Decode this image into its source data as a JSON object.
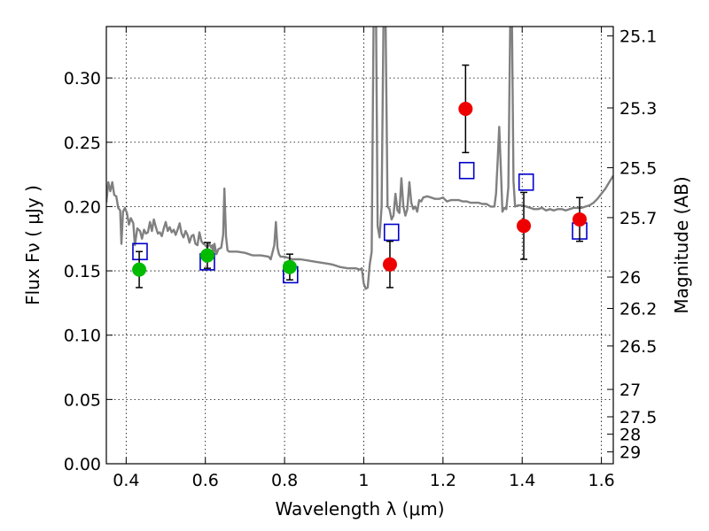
{
  "chart_data": {
    "type": "scatter",
    "xlabel": "Wavelength  λ (μm)",
    "ylabel": "Flux  Fν  ( μJy )",
    "ylabel_right": "Magnitude (AB)",
    "xlim": [
      0.35,
      1.63
    ],
    "ylim": [
      0.0,
      0.34
    ],
    "grid": true,
    "x_ticks": [
      0.4,
      0.6,
      0.8,
      1.0,
      1.2,
      1.4,
      1.6
    ],
    "x_tick_labels": [
      "0.4",
      "0.6",
      "0.8",
      "1",
      "1.2",
      "1.4",
      "1.6"
    ],
    "y_ticks": [
      0.0,
      0.05,
      0.1,
      0.15,
      0.2,
      0.25,
      0.3
    ],
    "y_tick_labels": [
      "0.00",
      "0.05",
      "0.10",
      "0.15",
      "0.20",
      "0.25",
      "0.30"
    ],
    "mag_ticks": [
      {
        "label": "25.1",
        "flux": 0.3327
      },
      {
        "label": "25.3",
        "flux": 0.2767
      },
      {
        "label": "25.5",
        "flux": 0.2302
      },
      {
        "label": "25.7",
        "flux": 0.1914
      },
      {
        "label": "26",
        "flux": 0.1452
      },
      {
        "label": "26.2",
        "flux": 0.1208
      },
      {
        "label": "26.5",
        "flux": 0.0916
      },
      {
        "label": "27",
        "flux": 0.0578
      },
      {
        "label": "27.5",
        "flux": 0.0365
      },
      {
        "label": "28",
        "flux": 0.023
      },
      {
        "label": "29",
        "flux": 0.0092
      }
    ],
    "series": [
      {
        "kind": "spectrum",
        "color": "#808080",
        "points": [
          [
            0.35,
            0.203
          ],
          [
            0.355,
            0.219
          ],
          [
            0.36,
            0.212
          ],
          [
            0.365,
            0.219
          ],
          [
            0.37,
            0.209
          ],
          [
            0.375,
            0.208
          ],
          [
            0.38,
            0.199
          ],
          [
            0.385,
            0.197
          ],
          [
            0.388,
            0.171
          ],
          [
            0.392,
            0.196
          ],
          [
            0.397,
            0.199
          ],
          [
            0.402,
            0.195
          ],
          [
            0.407,
            0.186
          ],
          [
            0.412,
            0.191
          ],
          [
            0.418,
            0.187
          ],
          [
            0.422,
            0.17
          ],
          [
            0.428,
            0.183
          ],
          [
            0.435,
            0.181
          ],
          [
            0.44,
            0.175
          ],
          [
            0.445,
            0.182
          ],
          [
            0.45,
            0.179
          ],
          [
            0.455,
            0.18
          ],
          [
            0.46,
            0.188
          ],
          [
            0.465,
            0.181
          ],
          [
            0.47,
            0.19
          ],
          [
            0.475,
            0.184
          ],
          [
            0.48,
            0.179
          ],
          [
            0.485,
            0.18
          ],
          [
            0.49,
            0.177
          ],
          [
            0.495,
            0.183
          ],
          [
            0.5,
            0.188
          ],
          [
            0.505,
            0.181
          ],
          [
            0.51,
            0.184
          ],
          [
            0.515,
            0.18
          ],
          [
            0.52,
            0.182
          ],
          [
            0.525,
            0.178
          ],
          [
            0.53,
            0.182
          ],
          [
            0.535,
            0.187
          ],
          [
            0.54,
            0.179
          ],
          [
            0.545,
            0.176
          ],
          [
            0.55,
            0.181
          ],
          [
            0.555,
            0.178
          ],
          [
            0.56,
            0.172
          ],
          [
            0.565,
            0.177
          ],
          [
            0.57,
            0.178
          ],
          [
            0.575,
            0.171
          ],
          [
            0.58,
            0.17
          ],
          [
            0.585,
            0.18
          ],
          [
            0.59,
            0.173
          ],
          [
            0.595,
            0.171
          ],
          [
            0.6,
            0.17
          ],
          [
            0.605,
            0.168
          ],
          [
            0.61,
            0.171
          ],
          [
            0.615,
            0.168
          ],
          [
            0.618,
            0.17
          ],
          [
            0.62,
            0.16
          ],
          [
            0.623,
            0.171
          ],
          [
            0.628,
            0.163
          ],
          [
            0.633,
            0.167
          ],
          [
            0.64,
            0.168
          ],
          [
            0.645,
            0.178
          ],
          [
            0.648,
            0.214
          ],
          [
            0.652,
            0.177
          ],
          [
            0.656,
            0.166
          ],
          [
            0.66,
            0.165
          ],
          [
            0.68,
            0.165
          ],
          [
            0.7,
            0.164
          ],
          [
            0.72,
            0.162
          ],
          [
            0.74,
            0.162
          ],
          [
            0.76,
            0.161
          ],
          [
            0.765,
            0.159
          ],
          [
            0.77,
            0.165
          ],
          [
            0.774,
            0.17
          ],
          [
            0.778,
            0.188
          ],
          [
            0.782,
            0.168
          ],
          [
            0.786,
            0.163
          ],
          [
            0.79,
            0.161
          ],
          [
            0.8,
            0.161
          ],
          [
            0.81,
            0.16
          ],
          [
            0.82,
            0.159
          ],
          [
            0.84,
            0.159
          ],
          [
            0.86,
            0.158
          ],
          [
            0.88,
            0.157
          ],
          [
            0.9,
            0.156
          ],
          [
            0.92,
            0.155
          ],
          [
            0.94,
            0.153
          ],
          [
            0.96,
            0.152
          ],
          [
            0.98,
            0.152
          ],
          [
            0.99,
            0.151
          ],
          [
            0.995,
            0.152
          ],
          [
            1.0,
            0.14
          ],
          [
            1.005,
            0.136
          ],
          [
            1.01,
            0.137
          ],
          [
            1.015,
            0.155
          ],
          [
            1.02,
            0.165
          ],
          [
            1.025,
            0.35
          ],
          [
            1.031,
            0.35
          ],
          [
            1.035,
            0.185
          ],
          [
            1.04,
            0.176
          ],
          [
            1.045,
            0.2
          ],
          [
            1.05,
            0.35
          ],
          [
            1.055,
            0.35
          ],
          [
            1.06,
            0.2
          ],
          [
            1.065,
            0.198
          ],
          [
            1.07,
            0.19
          ],
          [
            1.075,
            0.193
          ],
          [
            1.08,
            0.21
          ],
          [
            1.085,
            0.197
          ],
          [
            1.09,
            0.195
          ],
          [
            1.095,
            0.222
          ],
          [
            1.1,
            0.2
          ],
          [
            1.105,
            0.193
          ],
          [
            1.11,
            0.198
          ],
          [
            1.115,
            0.219
          ],
          [
            1.12,
            0.203
          ],
          [
            1.125,
            0.198
          ],
          [
            1.13,
            0.2
          ],
          [
            1.135,
            0.196
          ],
          [
            1.14,
            0.205
          ],
          [
            1.145,
            0.204
          ],
          [
            1.15,
            0.207
          ],
          [
            1.16,
            0.208
          ],
          [
            1.17,
            0.207
          ],
          [
            1.18,
            0.206
          ],
          [
            1.19,
            0.206
          ],
          [
            1.2,
            0.207
          ],
          [
            1.21,
            0.204
          ],
          [
            1.22,
            0.205
          ],
          [
            1.23,
            0.205
          ],
          [
            1.24,
            0.205
          ],
          [
            1.25,
            0.204
          ],
          [
            1.26,
            0.204
          ],
          [
            1.27,
            0.203
          ],
          [
            1.28,
            0.203
          ],
          [
            1.29,
            0.203
          ],
          [
            1.3,
            0.202
          ],
          [
            1.31,
            0.202
          ],
          [
            1.32,
            0.2
          ],
          [
            1.33,
            0.2
          ],
          [
            1.334,
            0.21
          ],
          [
            1.338,
            0.235
          ],
          [
            1.342,
            0.262
          ],
          [
            1.346,
            0.23
          ],
          [
            1.35,
            0.196
          ],
          [
            1.355,
            0.199
          ],
          [
            1.36,
            0.198
          ],
          [
            1.365,
            0.215
          ],
          [
            1.37,
            0.35
          ],
          [
            1.374,
            0.35
          ],
          [
            1.378,
            0.22
          ],
          [
            1.382,
            0.2
          ],
          [
            1.39,
            0.201
          ],
          [
            1.4,
            0.201
          ],
          [
            1.41,
            0.2
          ],
          [
            1.42,
            0.199
          ],
          [
            1.43,
            0.198
          ],
          [
            1.44,
            0.198
          ],
          [
            1.45,
            0.199
          ],
          [
            1.46,
            0.197
          ],
          [
            1.47,
            0.198
          ],
          [
            1.48,
            0.197
          ],
          [
            1.49,
            0.198
          ],
          [
            1.5,
            0.198
          ],
          [
            1.51,
            0.197
          ],
          [
            1.52,
            0.198
          ],
          [
            1.53,
            0.199
          ],
          [
            1.54,
            0.199
          ],
          [
            1.55,
            0.199
          ],
          [
            1.56,
            0.2
          ],
          [
            1.57,
            0.201
          ],
          [
            1.58,
            0.203
          ],
          [
            1.59,
            0.206
          ],
          [
            1.6,
            0.21
          ],
          [
            1.61,
            0.214
          ],
          [
            1.62,
            0.219
          ],
          [
            1.63,
            0.224
          ]
        ]
      },
      {
        "kind": "model-squares",
        "color": "#0000cc",
        "points": [
          {
            "x": 0.435,
            "y": 0.165
          },
          {
            "x": 0.605,
            "y": 0.157
          },
          {
            "x": 0.815,
            "y": 0.147
          },
          {
            "x": 1.07,
            "y": 0.18
          },
          {
            "x": 1.26,
            "y": 0.228
          },
          {
            "x": 1.41,
            "y": 0.219
          },
          {
            "x": 1.545,
            "y": 0.181
          }
        ]
      },
      {
        "kind": "observed-optical",
        "color": "#00bb00",
        "points": [
          {
            "x": 0.433,
            "y": 0.151,
            "err": 0.014
          },
          {
            "x": 0.605,
            "y": 0.162,
            "err": 0.01
          },
          {
            "x": 0.813,
            "y": 0.153,
            "err": 0.01
          }
        ]
      },
      {
        "kind": "observed-nir",
        "color": "#ee0000",
        "points": [
          {
            "x": 1.066,
            "y": 0.155,
            "err": 0.018
          },
          {
            "x": 1.257,
            "y": 0.276,
            "err": 0.034
          },
          {
            "x": 1.404,
            "y": 0.185,
            "err": 0.026
          },
          {
            "x": 1.545,
            "y": 0.19,
            "err": 0.017
          }
        ]
      }
    ]
  }
}
